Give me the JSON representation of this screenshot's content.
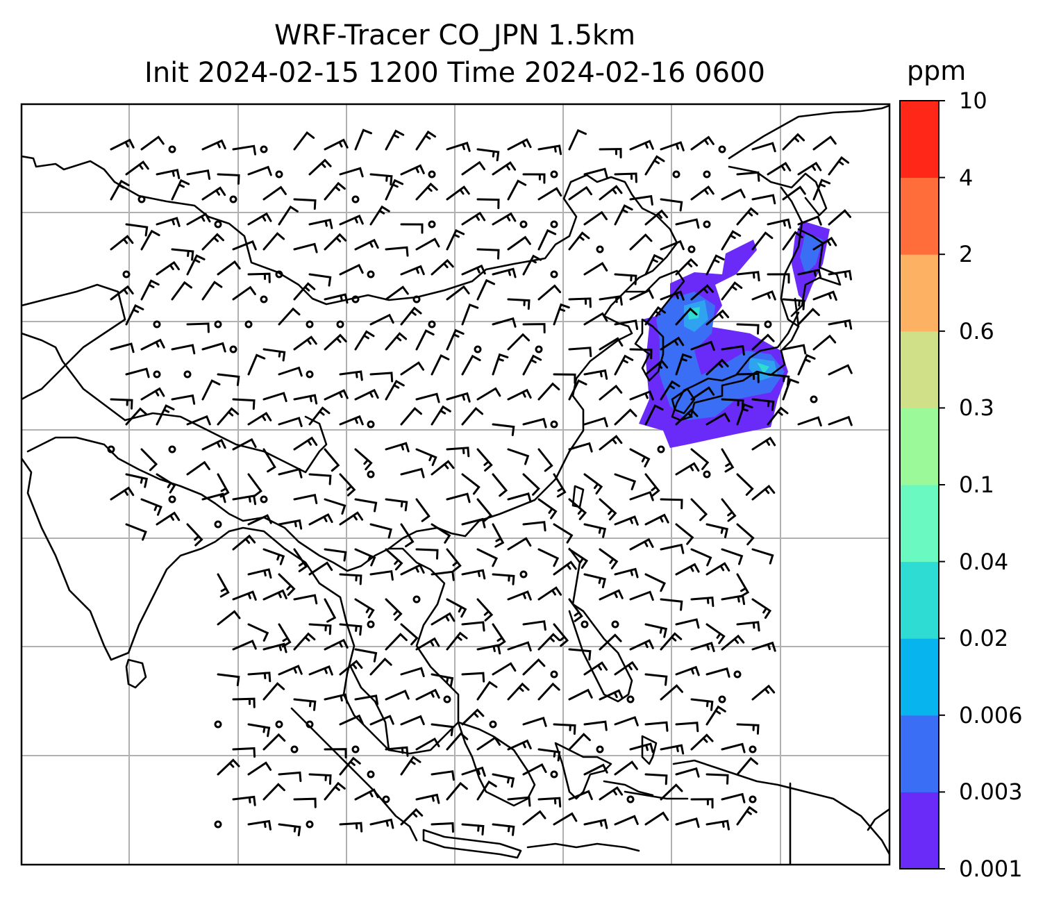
{
  "title": {
    "line1": "WRF-Tracer CO_JPN 1.5km",
    "line2": "Init 2024-02-15 1200 Time 2024-02-16 0600"
  },
  "colorbar": {
    "unit": "ppm",
    "ticks": [
      "0.001",
      "0.003",
      "0.006",
      "0.02",
      "0.04",
      "0.1",
      "0.3",
      "0.6",
      "2",
      "4",
      "10"
    ],
    "colors": [
      "#6a2bf9",
      "#3a6ff5",
      "#08b4ed",
      "#2fdcd4",
      "#6af9c0",
      "#9bf99a",
      "#cfe089",
      "#fdb162",
      "#ff6e3a",
      "#ff2717"
    ]
  },
  "map": {
    "field": "CO tracer concentration",
    "frame_color": "#000000",
    "grid_color": "#b0b0b0",
    "coast_color": "#000000",
    "plume_colors": [
      "#6a2bf9",
      "#3a6ff5",
      "#2fa3f0",
      "#2fdcd4"
    ]
  }
}
